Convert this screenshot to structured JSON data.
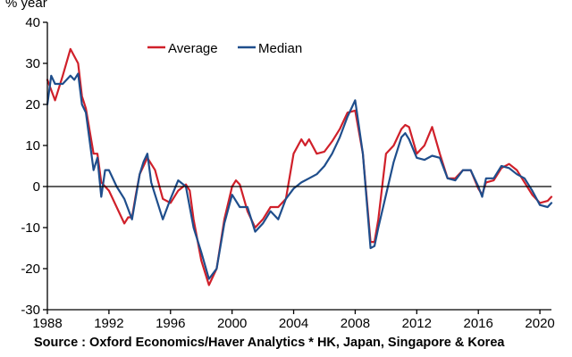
{
  "chart_data": {
    "type": "line",
    "unit_label": "% year",
    "source": "Source : Oxford Economics/Haver Analytics * HK, Japan, Singapore & Korea",
    "xlim": [
      1988,
      2020.75
    ],
    "ylim": [
      -30,
      40
    ],
    "x_ticks": [
      "1988",
      "1992",
      "1996",
      "2000",
      "2004",
      "2008",
      "2012",
      "2016",
      "2020"
    ],
    "y_ticks": [
      "40",
      "30",
      "20",
      "10",
      "0",
      "-10",
      "-20",
      "-30"
    ],
    "legend": {
      "position": "top-left"
    },
    "grid": false,
    "series": [
      {
        "name": "Average",
        "color": "#d0202a",
        "points": [
          [
            1988.0,
            26
          ],
          [
            1988.5,
            21
          ],
          [
            1989.0,
            27
          ],
          [
            1989.5,
            33.5
          ],
          [
            1990.0,
            30
          ],
          [
            1990.25,
            22
          ],
          [
            1990.5,
            19
          ],
          [
            1991.0,
            8
          ],
          [
            1991.25,
            8
          ],
          [
            1991.5,
            1
          ],
          [
            1992.0,
            -1
          ],
          [
            1992.5,
            -5
          ],
          [
            1993.0,
            -9
          ],
          [
            1993.25,
            -7.5
          ],
          [
            1993.5,
            -7.5
          ],
          [
            1993.75,
            -2
          ],
          [
            1994.0,
            3
          ],
          [
            1994.5,
            7
          ],
          [
            1995.0,
            4
          ],
          [
            1995.5,
            -3
          ],
          [
            1996.0,
            -4
          ],
          [
            1996.5,
            -1
          ],
          [
            1997.0,
            0.5
          ],
          [
            1997.25,
            -1
          ],
          [
            1997.5,
            -8
          ],
          [
            1998.0,
            -18
          ],
          [
            1998.5,
            -24
          ],
          [
            1999.0,
            -20
          ],
          [
            1999.5,
            -8
          ],
          [
            2000.0,
            0
          ],
          [
            2000.25,
            1.5
          ],
          [
            2000.5,
            0.5
          ],
          [
            2001.0,
            -6
          ],
          [
            2001.5,
            -10
          ],
          [
            2002.0,
            -8
          ],
          [
            2002.5,
            -5
          ],
          [
            2003.0,
            -5
          ],
          [
            2003.5,
            -3
          ],
          [
            2004.0,
            8
          ],
          [
            2004.5,
            11.5
          ],
          [
            2004.75,
            10
          ],
          [
            2005.0,
            11.5
          ],
          [
            2005.5,
            8
          ],
          [
            2006.0,
            8.5
          ],
          [
            2006.5,
            11
          ],
          [
            2007.0,
            14
          ],
          [
            2007.5,
            18
          ],
          [
            2008.0,
            18.5
          ],
          [
            2008.5,
            8
          ],
          [
            2009.0,
            -13.5
          ],
          [
            2009.25,
            -13.5
          ],
          [
            2009.5,
            -8
          ],
          [
            2010.0,
            8
          ],
          [
            2010.5,
            10
          ],
          [
            2011.0,
            14
          ],
          [
            2011.25,
            15
          ],
          [
            2011.5,
            14.5
          ],
          [
            2012.0,
            8
          ],
          [
            2012.5,
            10
          ],
          [
            2013.0,
            14.5
          ],
          [
            2013.5,
            8
          ],
          [
            2014.0,
            2
          ],
          [
            2014.5,
            2
          ],
          [
            2015.0,
            4
          ],
          [
            2015.5,
            4
          ],
          [
            2016.0,
            -0.5
          ],
          [
            2016.25,
            -2
          ],
          [
            2016.5,
            1
          ],
          [
            2017.0,
            1.5
          ],
          [
            2017.5,
            4.5
          ],
          [
            2018.0,
            5.5
          ],
          [
            2018.5,
            4
          ],
          [
            2019.0,
            1
          ],
          [
            2019.5,
            -2
          ],
          [
            2020.0,
            -4
          ],
          [
            2020.5,
            -3.5
          ],
          [
            2020.75,
            -2.5
          ]
        ]
      },
      {
        "name": "Median",
        "color": "#1f4e8c",
        "points": [
          [
            1988.0,
            20
          ],
          [
            1988.25,
            27
          ],
          [
            1988.5,
            25
          ],
          [
            1989.0,
            25
          ],
          [
            1989.5,
            27
          ],
          [
            1989.75,
            26
          ],
          [
            1990.0,
            27.5
          ],
          [
            1990.25,
            20
          ],
          [
            1990.5,
            18
          ],
          [
            1991.0,
            4
          ],
          [
            1991.25,
            7
          ],
          [
            1991.5,
            -2.5
          ],
          [
            1991.75,
            4
          ],
          [
            1992.0,
            4
          ],
          [
            1992.5,
            0
          ],
          [
            1993.0,
            -3
          ],
          [
            1993.5,
            -8
          ],
          [
            1994.0,
            3
          ],
          [
            1994.25,
            6
          ],
          [
            1994.5,
            8
          ],
          [
            1994.75,
            1
          ],
          [
            1995.0,
            -2
          ],
          [
            1995.5,
            -8
          ],
          [
            1996.0,
            -3
          ],
          [
            1996.5,
            1.5
          ],
          [
            1997.0,
            0
          ],
          [
            1997.5,
            -10
          ],
          [
            1998.0,
            -16
          ],
          [
            1998.5,
            -22.5
          ],
          [
            1999.0,
            -20
          ],
          [
            1999.5,
            -9
          ],
          [
            2000.0,
            -2
          ],
          [
            2000.5,
            -5
          ],
          [
            2001.0,
            -5
          ],
          [
            2001.5,
            -11
          ],
          [
            2002.0,
            -9
          ],
          [
            2002.5,
            -6
          ],
          [
            2003.0,
            -8
          ],
          [
            2003.5,
            -3
          ],
          [
            2004.0,
            -0.5
          ],
          [
            2004.5,
            1
          ],
          [
            2005.0,
            2
          ],
          [
            2005.5,
            3
          ],
          [
            2006.0,
            5
          ],
          [
            2006.5,
            8
          ],
          [
            2007.0,
            12
          ],
          [
            2007.5,
            17
          ],
          [
            2008.0,
            21
          ],
          [
            2008.5,
            8
          ],
          [
            2009.0,
            -15
          ],
          [
            2009.25,
            -14.5
          ],
          [
            2009.5,
            -10
          ],
          [
            2010.0,
            -2
          ],
          [
            2010.5,
            6
          ],
          [
            2011.0,
            12
          ],
          [
            2011.25,
            13
          ],
          [
            2011.5,
            11.5
          ],
          [
            2012.0,
            7
          ],
          [
            2012.5,
            6.5
          ],
          [
            2013.0,
            7.5
          ],
          [
            2013.5,
            7
          ],
          [
            2014.0,
            2
          ],
          [
            2014.5,
            1.5
          ],
          [
            2015.0,
            4
          ],
          [
            2015.5,
            4
          ],
          [
            2016.0,
            0
          ],
          [
            2016.25,
            -2.5
          ],
          [
            2016.5,
            2
          ],
          [
            2017.0,
            2
          ],
          [
            2017.5,
            5
          ],
          [
            2018.0,
            4.5
          ],
          [
            2018.5,
            3
          ],
          [
            2019.0,
            2
          ],
          [
            2019.5,
            -1
          ],
          [
            2020.0,
            -4.5
          ],
          [
            2020.5,
            -5
          ],
          [
            2020.75,
            -4
          ]
        ]
      }
    ]
  }
}
